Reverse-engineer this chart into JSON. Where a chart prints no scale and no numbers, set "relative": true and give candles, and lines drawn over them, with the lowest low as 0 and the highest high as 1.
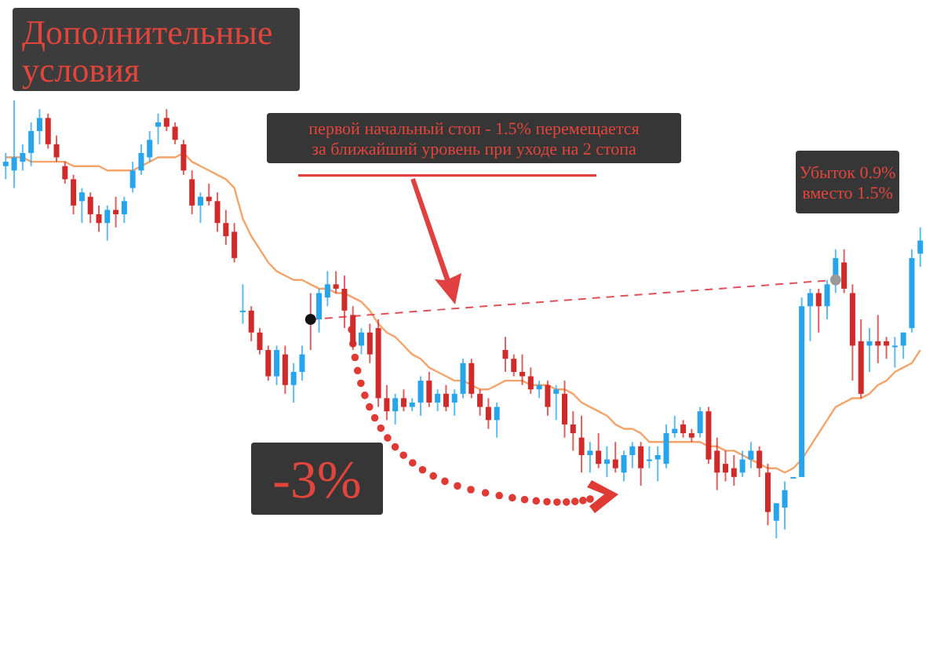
{
  "chart_data": {
    "type": "candlestick",
    "title": "Дополнительные условия",
    "relative": true,
    "categories": [
      null,
      null,
      null,
      null,
      null,
      null,
      null,
      null,
      null,
      null,
      null,
      null,
      null,
      null,
      null,
      null,
      null,
      null,
      null,
      null,
      null,
      null,
      null,
      null,
      null,
      null,
      null,
      null,
      null,
      null,
      null,
      null,
      null,
      null,
      null,
      null,
      null,
      null,
      null,
      null,
      null,
      null,
      null,
      null,
      null,
      null,
      null,
      null,
      null,
      null,
      null,
      null,
      null,
      null,
      null,
      null,
      null,
      null,
      null,
      null,
      null,
      null,
      null,
      null,
      null,
      null,
      null,
      null,
      null,
      null,
      null,
      null,
      null,
      null,
      null,
      null,
      null,
      null,
      null,
      null,
      null,
      null,
      null,
      null,
      null,
      null,
      null,
      null,
      null,
      null,
      null,
      null,
      null,
      null,
      null,
      null,
      null,
      null,
      null,
      null,
      null,
      null,
      null,
      null,
      null,
      null,
      null,
      null,
      null
    ],
    "ohlc": [
      [
        0.85,
        0.88,
        0.82,
        0.86
      ],
      [
        0.84,
        1.0,
        0.8,
        0.87
      ],
      [
        0.86,
        0.9,
        0.84,
        0.88
      ],
      [
        0.88,
        0.95,
        0.85,
        0.93
      ],
      [
        0.93,
        0.98,
        0.9,
        0.96
      ],
      [
        0.96,
        0.97,
        0.89,
        0.9
      ],
      [
        0.9,
        0.92,
        0.86,
        0.87
      ],
      [
        0.85,
        0.86,
        0.81,
        0.82
      ],
      [
        0.82,
        0.83,
        0.74,
        0.76
      ],
      [
        0.77,
        0.8,
        0.72,
        0.79
      ],
      [
        0.78,
        0.79,
        0.72,
        0.74
      ],
      [
        0.74,
        0.76,
        0.7,
        0.72
      ],
      [
        0.72,
        0.76,
        0.68,
        0.75
      ],
      [
        0.75,
        0.78,
        0.71,
        0.74
      ],
      [
        0.74,
        0.78,
        0.72,
        0.77
      ],
      [
        0.8,
        0.86,
        0.79,
        0.84
      ],
      [
        0.84,
        0.9,
        0.83,
        0.88
      ],
      [
        0.87,
        0.93,
        0.86,
        0.91
      ],
      [
        0.94,
        0.97,
        0.9,
        0.95
      ],
      [
        0.96,
        0.98,
        0.93,
        0.94
      ],
      [
        0.94,
        0.95,
        0.9,
        0.91
      ],
      [
        0.9,
        0.91,
        0.83,
        0.84
      ],
      [
        0.82,
        0.84,
        0.74,
        0.76
      ],
      [
        0.76,
        0.79,
        0.72,
        0.78
      ],
      [
        0.78,
        0.81,
        0.76,
        0.77
      ],
      [
        0.77,
        0.79,
        0.7,
        0.72
      ],
      [
        0.72,
        0.75,
        0.67,
        0.69
      ],
      [
        0.7,
        0.72,
        0.63,
        0.64
      ],
      [
        0.52,
        0.58,
        0.49,
        0.52
      ],
      [
        0.52,
        0.53,
        0.45,
        0.47
      ],
      [
        0.47,
        0.48,
        0.42,
        0.43
      ],
      [
        0.43,
        0.44,
        0.36,
        0.37
      ],
      [
        0.37,
        0.44,
        0.35,
        0.43
      ],
      [
        0.42,
        0.44,
        0.33,
        0.35
      ],
      [
        0.35,
        0.4,
        0.31,
        0.38
      ],
      [
        0.38,
        0.44,
        0.36,
        0.42
      ],
      [
        0.5,
        0.56,
        0.43,
        0.49
      ],
      [
        0.5,
        0.57,
        0.47,
        0.56
      ],
      [
        0.55,
        0.61,
        0.53,
        0.58
      ],
      [
        0.58,
        0.61,
        0.56,
        0.57
      ],
      [
        0.57,
        0.6,
        0.48,
        0.52
      ],
      [
        0.51,
        0.53,
        0.43,
        0.44
      ],
      [
        0.44,
        0.48,
        0.42,
        0.47
      ],
      [
        0.47,
        0.49,
        0.4,
        0.42
      ],
      [
        0.48,
        0.5,
        0.3,
        0.32
      ],
      [
        0.32,
        0.35,
        0.27,
        0.29
      ],
      [
        0.29,
        0.33,
        0.26,
        0.32
      ],
      [
        0.32,
        0.34,
        0.29,
        0.3
      ],
      [
        0.3,
        0.32,
        0.29,
        0.31
      ],
      [
        0.31,
        0.37,
        0.28,
        0.36
      ],
      [
        0.36,
        0.38,
        0.3,
        0.31
      ],
      [
        0.31,
        0.34,
        0.29,
        0.33
      ],
      [
        0.33,
        0.35,
        0.29,
        0.3
      ],
      [
        0.31,
        0.34,
        0.28,
        0.33
      ],
      [
        0.33,
        0.41,
        0.32,
        0.4
      ],
      [
        0.4,
        0.41,
        0.32,
        0.33
      ],
      [
        0.33,
        0.34,
        0.28,
        0.3
      ],
      [
        0.3,
        0.32,
        0.25,
        0.27
      ],
      [
        0.27,
        0.31,
        0.23,
        0.3
      ],
      [
        0.43,
        0.46,
        0.38,
        0.41
      ],
      [
        0.41,
        0.42,
        0.37,
        0.38
      ],
      [
        0.38,
        0.42,
        0.35,
        0.37
      ],
      [
        0.37,
        0.39,
        0.33,
        0.34
      ],
      [
        0.34,
        0.36,
        0.32,
        0.35
      ],
      [
        0.35,
        0.36,
        0.28,
        0.3
      ],
      [
        0.33,
        0.35,
        0.27,
        0.34
      ],
      [
        0.33,
        0.36,
        0.23,
        0.26
      ],
      [
        0.26,
        0.29,
        0.2,
        0.24
      ],
      [
        0.23,
        0.28,
        0.15,
        0.19
      ],
      [
        0.19,
        0.22,
        0.15,
        0.2
      ],
      [
        0.2,
        0.24,
        0.16,
        0.17
      ],
      [
        0.17,
        0.21,
        0.14,
        0.18
      ],
      [
        0.18,
        0.22,
        0.15,
        0.16
      ],
      [
        0.15,
        0.2,
        0.13,
        0.19
      ],
      [
        0.19,
        0.22,
        0.16,
        0.21
      ],
      [
        0.21,
        0.22,
        0.12,
        0.16
      ],
      [
        0.18,
        0.21,
        0.16,
        0.18
      ],
      [
        0.18,
        0.21,
        0.13,
        0.19
      ],
      [
        0.17,
        0.26,
        0.16,
        0.24
      ],
      [
        0.24,
        0.28,
        0.23,
        0.25
      ],
      [
        0.26,
        0.27,
        0.23,
        0.24
      ],
      [
        0.24,
        0.25,
        0.22,
        0.23
      ],
      [
        0.24,
        0.3,
        0.23,
        0.29
      ],
      [
        0.29,
        0.3,
        0.17,
        0.18
      ],
      [
        0.2,
        0.23,
        0.11,
        0.15
      ],
      [
        0.17,
        0.2,
        0.13,
        0.15
      ],
      [
        0.16,
        0.19,
        0.12,
        0.14
      ],
      [
        0.15,
        0.2,
        0.14,
        0.18
      ],
      [
        0.18,
        0.22,
        0.16,
        0.2
      ],
      [
        0.2,
        0.21,
        0.14,
        0.16
      ],
      [
        0.15,
        0.17,
        0.03,
        0.06
      ],
      [
        0.04,
        0.08,
        0.0,
        0.08
      ],
      [
        0.07,
        0.13,
        0.02,
        0.11
      ],
      [
        0.14,
        0.14,
        0.14,
        0.14
      ],
      [
        0.14,
        0.55,
        0.14,
        0.53
      ],
      [
        0.53,
        0.57,
        0.45,
        0.56
      ],
      [
        0.56,
        0.57,
        0.47,
        0.53
      ],
      [
        0.53,
        0.59,
        0.5,
        0.58
      ],
      [
        0.58,
        0.66,
        0.56,
        0.64
      ],
      [
        0.63,
        0.66,
        0.56,
        0.57
      ],
      [
        0.56,
        0.58,
        0.36,
        0.44
      ],
      [
        0.45,
        0.5,
        0.32,
        0.33
      ],
      [
        0.44,
        0.48,
        0.38,
        0.45
      ],
      [
        0.45,
        0.51,
        0.4,
        0.44
      ],
      [
        0.45,
        0.46,
        0.41,
        0.44
      ],
      [
        0.44,
        0.46,
        0.39,
        0.44
      ],
      [
        0.44,
        0.47,
        0.41,
        0.47
      ],
      [
        0.48,
        0.66,
        0.47,
        0.64
      ],
      [
        0.65,
        0.71,
        0.62,
        0.68
      ]
    ],
    "colors": [
      "#27a4ec",
      "#27a4ec",
      "#27a4ec",
      "#27a4ec",
      "#27a4ec",
      "#d12a2a",
      "#d12a2a",
      "#d12a2a",
      "#d12a2a",
      "#27a4ec",
      "#d12a2a",
      "#d12a2a",
      "#27a4ec",
      "#d12a2a",
      "#27a4ec",
      "#27a4ec",
      "#27a4ec",
      "#27a4ec",
      "#27a4ec",
      "#d12a2a",
      "#d12a2a",
      "#d12a2a",
      "#d12a2a",
      "#27a4ec",
      "#d12a2a",
      "#d12a2a",
      "#d12a2a",
      "#d12a2a",
      "#27a4ec",
      "#d12a2a",
      "#d12a2a",
      "#d12a2a",
      "#27a4ec",
      "#d12a2a",
      "#27a4ec",
      "#27a4ec",
      "#d12a2a",
      "#27a4ec",
      "#27a4ec",
      "#d12a2a",
      "#d12a2a",
      "#d12a2a",
      "#27a4ec",
      "#d12a2a",
      "#d12a2a",
      "#d12a2a",
      "#27a4ec",
      "#d12a2a",
      "#27a4ec",
      "#27a4ec",
      "#d12a2a",
      "#27a4ec",
      "#d12a2a",
      "#27a4ec",
      "#27a4ec",
      "#d12a2a",
      "#d12a2a",
      "#d12a2a",
      "#27a4ec",
      "#d12a2a",
      "#d12a2a",
      "#d12a2a",
      "#d12a2a",
      "#27a4ec",
      "#d12a2a",
      "#27a4ec",
      "#d12a2a",
      "#d12a2a",
      "#d12a2a",
      "#27a4ec",
      "#d12a2a",
      "#27a4ec",
      "#d12a2a",
      "#27a4ec",
      "#27a4ec",
      "#d12a2a",
      "#27a4ec",
      "#27a4ec",
      "#27a4ec",
      "#27a4ec",
      "#d12a2a",
      "#d12a2a",
      "#27a4ec",
      "#d12a2a",
      "#d12a2a",
      "#d12a2a",
      "#d12a2a",
      "#27a4ec",
      "#27a4ec",
      "#d12a2a",
      "#d12a2a",
      "#27a4ec",
      "#27a4ec",
      "#27a4ec",
      "#27a4ec",
      "#27a4ec",
      "#d12a2a",
      "#27a4ec",
      "#27a4ec",
      "#d12a2a",
      "#d12a2a",
      "#d12a2a",
      "#27a4ec",
      "#d12a2a",
      "#d12a2a",
      "#27a4ec",
      "#27a4ec",
      "#27a4ec",
      "#27a4ec"
    ],
    "series": [
      {
        "type": "line",
        "color": "#f4a46b",
        "values": [
          0.87,
          0.87,
          0.87,
          0.86,
          0.86,
          0.86,
          0.86,
          0.86,
          0.85,
          0.85,
          0.85,
          0.85,
          0.84,
          0.84,
          0.84,
          0.84,
          0.85,
          0.86,
          0.87,
          0.87,
          0.87,
          0.88,
          0.86,
          0.85,
          0.84,
          0.83,
          0.82,
          0.8,
          0.73,
          0.69,
          0.66,
          0.63,
          0.61,
          0.6,
          0.59,
          0.59,
          0.58,
          0.57,
          0.57,
          0.56,
          0.56,
          0.55,
          0.54,
          0.52,
          0.49,
          0.47,
          0.46,
          0.44,
          0.42,
          0.41,
          0.39,
          0.38,
          0.37,
          0.36,
          0.36,
          0.35,
          0.34,
          0.34,
          0.35,
          0.36,
          0.36,
          0.36,
          0.35,
          0.35,
          0.35,
          0.34,
          0.34,
          0.33,
          0.31,
          0.3,
          0.29,
          0.28,
          0.26,
          0.25,
          0.25,
          0.24,
          0.22,
          0.22,
          0.22,
          0.22,
          0.22,
          0.22,
          0.22,
          0.21,
          0.21,
          0.2,
          0.2,
          0.19,
          0.18,
          0.17,
          0.16,
          0.16,
          0.15,
          0.16,
          0.18,
          0.21,
          0.24,
          0.27,
          0.3,
          0.31,
          0.32,
          0.32,
          0.33,
          0.35,
          0.36,
          0.38,
          0.39,
          0.4,
          0.43
        ]
      },
      {
        "type": "line",
        "color": "#e0505a",
        "line_style": "dashed",
        "marker": "circle",
        "values": [
          null,
          null,
          null,
          null,
          null,
          null,
          null,
          null,
          null,
          null,
          null,
          null,
          null,
          null,
          null,
          null,
          null,
          null,
          null,
          null,
          null,
          null,
          null,
          null,
          null,
          null,
          null,
          null,
          null,
          null,
          null,
          null,
          null,
          null,
          null,
          null,
          0.5,
          null,
          null,
          null,
          null,
          null,
          null,
          null,
          null,
          null,
          null,
          null,
          null,
          null,
          null,
          null,
          null,
          null,
          null,
          null,
          null,
          null,
          null,
          null,
          null,
          null,
          null,
          null,
          null,
          null,
          null,
          null,
          null,
          null,
          null,
          null,
          null,
          null,
          null,
          null,
          null,
          null,
          null,
          null,
          null,
          null,
          null,
          null,
          null,
          null,
          null,
          null,
          null,
          null,
          null,
          null,
          null,
          null,
          null,
          null,
          null,
          null,
          0.59,
          null,
          null,
          null,
          null,
          null,
          null,
          null,
          null,
          null,
          null
        ]
      }
    ],
    "annotations": [
      "первой начальный стоп - 1.5% перемещается за ближайший уровень при уходе на 2 стопа",
      "Убыток 0.9% вместо 1.5%",
      "-3%"
    ]
  }
}
